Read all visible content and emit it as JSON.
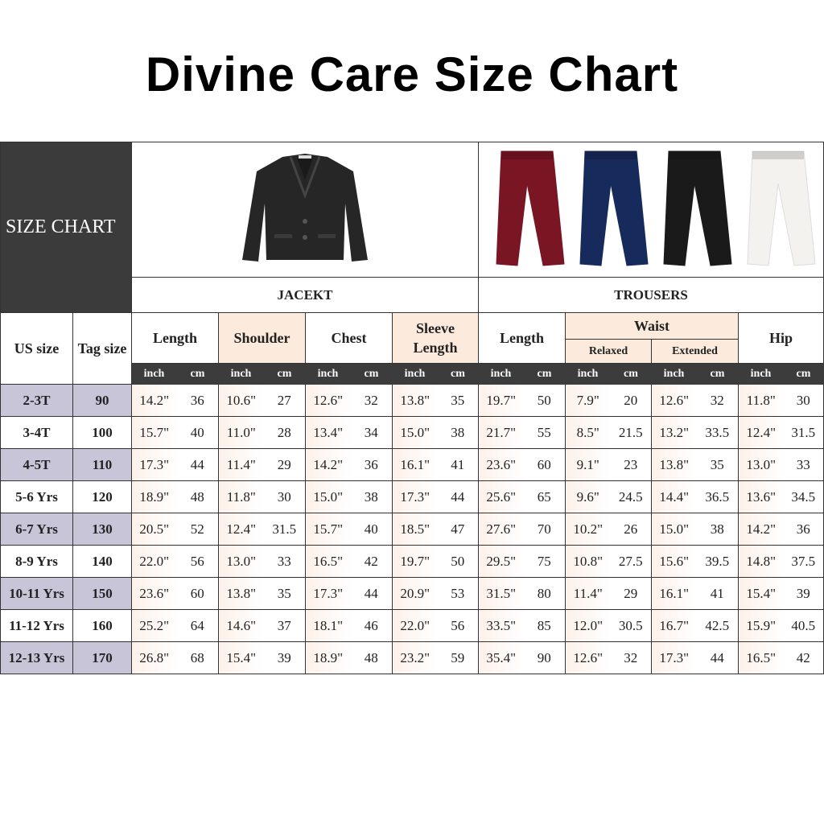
{
  "title": "Divine Care Size Chart",
  "size_chart_label": "SIZE CHART",
  "jacket_label": "JACEKT",
  "trousers_label": "TROUSERS",
  "trouser_colors": [
    "#7a1524",
    "#172a5c",
    "#1a1a1a",
    "#f4f2ee"
  ],
  "headers": {
    "us_size": "US size",
    "tag_size": "Tag size",
    "jacket_length": "Length",
    "shoulder": "Shoulder",
    "chest": "Chest",
    "sleeve_length": "Sleeve Length",
    "trouser_length": "Length",
    "waist": "Waist",
    "relaxed": "Relaxed",
    "extended": "Extended",
    "hip": "Hip",
    "inch": "inch",
    "cm": "cm"
  },
  "rows": [
    {
      "us": "2-3T",
      "tag": "90",
      "v": [
        "14.2\"",
        "36",
        "10.6\"",
        "27",
        "12.6\"",
        "32",
        "13.8\"",
        "35",
        "19.7\"",
        "50",
        "7.9\"",
        "20",
        "12.6\"",
        "32",
        "11.8\"",
        "30"
      ]
    },
    {
      "us": "3-4T",
      "tag": "100",
      "v": [
        "15.7\"",
        "40",
        "11.0\"",
        "28",
        "13.4\"",
        "34",
        "15.0\"",
        "38",
        "21.7\"",
        "55",
        "8.5\"",
        "21.5",
        "13.2\"",
        "33.5",
        "12.4\"",
        "31.5"
      ]
    },
    {
      "us": "4-5T",
      "tag": "110",
      "v": [
        "17.3\"",
        "44",
        "11.4\"",
        "29",
        "14.2\"",
        "36",
        "16.1\"",
        "41",
        "23.6\"",
        "60",
        "9.1\"",
        "23",
        "13.8\"",
        "35",
        "13.0\"",
        "33"
      ]
    },
    {
      "us": "5-6 Yrs",
      "tag": "120",
      "v": [
        "18.9\"",
        "48",
        "11.8\"",
        "30",
        "15.0\"",
        "38",
        "17.3\"",
        "44",
        "25.6\"",
        "65",
        "9.6\"",
        "24.5",
        "14.4\"",
        "36.5",
        "13.6\"",
        "34.5"
      ]
    },
    {
      "us": "6-7 Yrs",
      "tag": "130",
      "v": [
        "20.5\"",
        "52",
        "12.4\"",
        "31.5",
        "15.7\"",
        "40",
        "18.5\"",
        "47",
        "27.6\"",
        "70",
        "10.2\"",
        "26",
        "15.0\"",
        "38",
        "14.2\"",
        "36"
      ]
    },
    {
      "us": "8-9 Yrs",
      "tag": "140",
      "v": [
        "22.0\"",
        "56",
        "13.0\"",
        "33",
        "16.5\"",
        "42",
        "19.7\"",
        "50",
        "29.5\"",
        "75",
        "10.8\"",
        "27.5",
        "15.6\"",
        "39.5",
        "14.8\"",
        "37.5"
      ]
    },
    {
      "us": "10-11 Yrs",
      "tag": "150",
      "v": [
        "23.6\"",
        "60",
        "13.8\"",
        "35",
        "17.3\"",
        "44",
        "20.9\"",
        "53",
        "31.5\"",
        "80",
        "11.4\"",
        "29",
        "16.1\"",
        "41",
        "15.4\"",
        "39"
      ]
    },
    {
      "us": "11-12  Yrs",
      "tag": "160",
      "v": [
        "25.2\"",
        "64",
        "14.6\"",
        "37",
        "18.1\"",
        "46",
        "22.0\"",
        "56",
        "33.5\"",
        "85",
        "12.0\"",
        "30.5",
        "16.7\"",
        "42.5",
        "15.9\"",
        "40.5"
      ]
    },
    {
      "us": "12-13 Yrs",
      "tag": "170",
      "v": [
        "26.8\"",
        "68",
        "15.4\"",
        "39",
        "18.9\"",
        "48",
        "23.2\"",
        "59",
        "35.4\"",
        "90",
        "12.6\"",
        "32",
        "17.3\"",
        "44",
        "16.5\"",
        "42"
      ]
    }
  ]
}
